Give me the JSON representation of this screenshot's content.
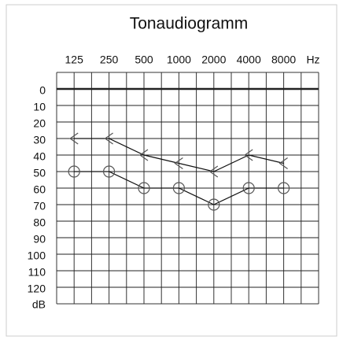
{
  "chart_data": {
    "type": "audiogram",
    "title": "Tonaudiogramm",
    "categories": [
      "125",
      "250",
      "500",
      "1000",
      "2000",
      "4000",
      "8000"
    ],
    "x_unit": "Hz",
    "y_unit": "dB",
    "ylim": [
      0,
      120
    ],
    "yticks": [
      0,
      10,
      20,
      30,
      40,
      50,
      60,
      70,
      80,
      90,
      100,
      110,
      120
    ],
    "y_inverted": true,
    "grid": true,
    "series": [
      {
        "marker": "<",
        "color": "#555555",
        "values": [
          30,
          30,
          40,
          45,
          50,
          40,
          45
        ]
      },
      {
        "marker": "circle",
        "color": "#555555",
        "values": [
          50,
          50,
          60,
          60,
          70,
          60,
          60
        ]
      }
    ]
  }
}
